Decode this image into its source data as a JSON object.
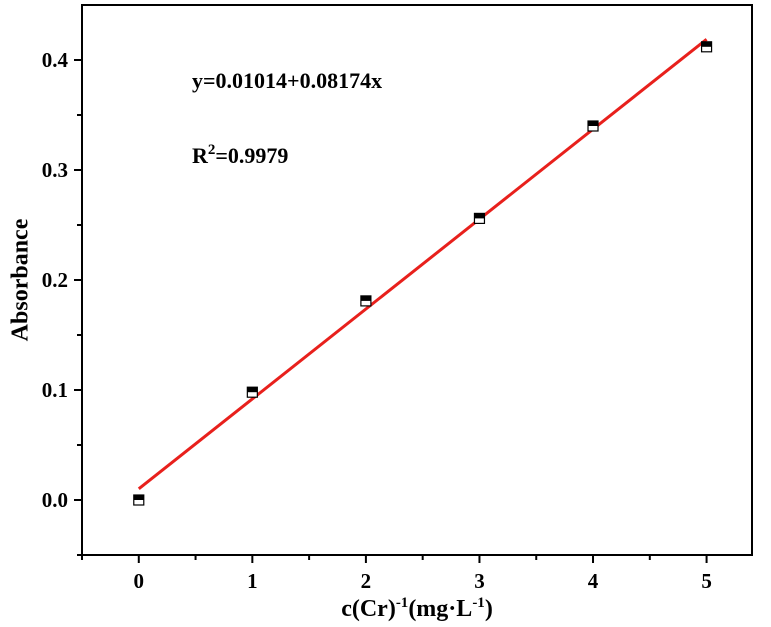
{
  "chart_data": {
    "type": "scatter",
    "x": [
      0,
      1,
      2,
      3,
      4,
      5
    ],
    "values": [
      0.0,
      0.098,
      0.181,
      0.256,
      0.34,
      0.412
    ],
    "color": "#000000",
    "fit": {
      "x": [
        0,
        5
      ],
      "values": [
        0.01014,
        0.41884
      ],
      "color": "#e8201c"
    },
    "xlim": [
      -0.5,
      5.4
    ],
    "ylim": [
      -0.05,
      0.45
    ],
    "xticks": [
      0,
      1,
      2,
      3,
      4,
      5
    ],
    "yticks": [
      {
        "value": 0,
        "label": "0.0"
      },
      0.1,
      0.2,
      0.3,
      0.4
    ],
    "xminorticks": [
      -0.5,
      0.5,
      1.5,
      2.5,
      3.5,
      4.5
    ],
    "yminorticks": [
      -0.05,
      0.05,
      0.15,
      0.25,
      0.35
    ],
    "x_label": [
      "c(Cr)",
      "-1",
      "(mg·L",
      "-1",
      ")"
    ],
    "y_label": "Absorbance",
    "annotations": [
      [
        "y=0.01014+0.08174x"
      ],
      [
        "R",
        "2",
        "=0.9979"
      ]
    ]
  }
}
